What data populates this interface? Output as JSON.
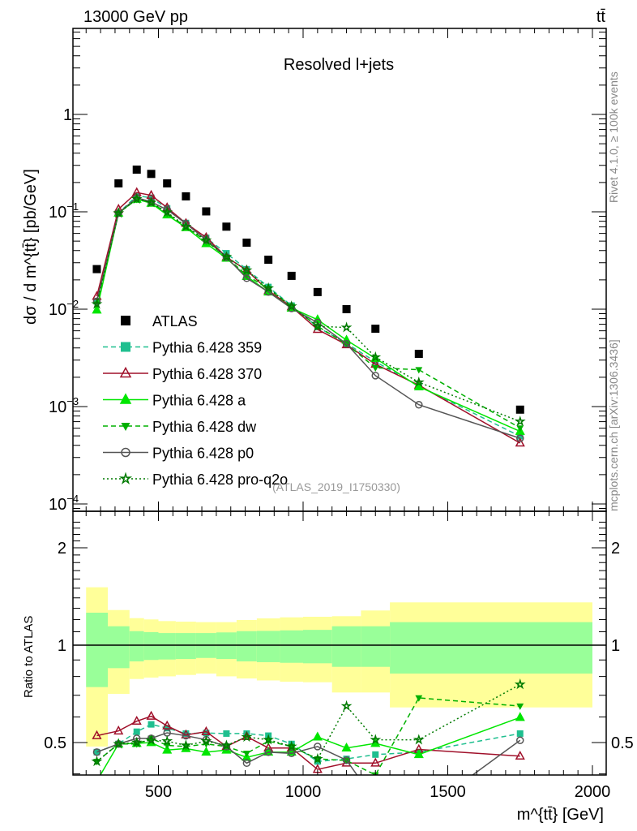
{
  "header": {
    "left": "13000 GeV pp",
    "right": "tt̄"
  },
  "side_labels": {
    "top": "Rivet 4.1.0, ≥ 100k events",
    "bottom": "mcplots.cern.ch [arXiv:1306.3436]"
  },
  "chart_data": {
    "type": "line",
    "title": "Resolved l+jets",
    "analysis": "(ATLAS_2019_I1750330)",
    "xlabel": "m^{tt̄} [GeV]",
    "ylabel": "dσ / d m^{tt̄} [pb/GeV]",
    "ratio_ylabel": "Ratio to ATLAS",
    "xlim": [
      200,
      2050
    ],
    "ylim": [
      8.35e-05,
      7.6
    ],
    "yscale": "log",
    "ratio_ylim": [
      0.397,
      2.52
    ],
    "ratio_yscale": "log",
    "x_ticks": [
      500,
      1000,
      1500,
      2000
    ],
    "x_tick_labels": [
      "500",
      "1000",
      "1500",
      "2000"
    ],
    "y_ticks": [
      1,
      0.1,
      0.01,
      0.001,
      0.0001
    ],
    "y_tick_labels": [
      [
        "1",
        ""
      ],
      [
        "10",
        "−1"
      ],
      [
        "10",
        "−2"
      ],
      [
        "10",
        "−3"
      ],
      [
        "10",
        "−4"
      ]
    ],
    "ratio_ticks": [
      0.5,
      1,
      2
    ],
    "ratio_tick_labels": [
      "0.5",
      "1",
      "2"
    ],
    "bin_edges": [
      250,
      325,
      400,
      450,
      500,
      560,
      630,
      700,
      770,
      840,
      920,
      1000,
      1100,
      1200,
      1300,
      1500,
      2000
    ],
    "x": [
      287,
      362,
      425,
      475,
      530,
      595,
      665,
      735,
      805,
      880,
      960,
      1050,
      1150,
      1250,
      1400,
      1750
    ],
    "data": {
      "name": "ATLAS",
      "color": "#000000",
      "values": [
        0.0258,
        0.196,
        0.271,
        0.245,
        0.196,
        0.144,
        0.101,
        0.0704,
        0.0482,
        0.0322,
        0.022,
        0.015,
        0.01,
        0.0063,
        0.00348,
        0.00093
      ],
      "band_total_up": [
        1.51,
        1.284,
        1.212,
        1.201,
        1.187,
        1.182,
        1.178,
        1.178,
        1.196,
        1.21,
        1.219,
        1.224,
        1.229,
        1.28,
        1.356,
        1.356
      ],
      "band_total_down": [
        0.486,
        0.707,
        0.786,
        0.794,
        0.801,
        0.809,
        0.817,
        0.801,
        0.789,
        0.778,
        0.771,
        0.768,
        0.714,
        0.714,
        0.642,
        0.642
      ],
      "band_stat_up": [
        1.26,
        1.144,
        1.105,
        1.097,
        1.09,
        1.09,
        1.09,
        1.095,
        1.105,
        1.107,
        1.111,
        1.115,
        1.144,
        1.144,
        1.178,
        1.178
      ],
      "band_stat_down": [
        0.742,
        0.849,
        0.891,
        0.9,
        0.903,
        0.906,
        0.913,
        0.906,
        0.891,
        0.886,
        0.882,
        0.879,
        0.857,
        0.857,
        0.817,
        0.817
      ]
    },
    "series": [
      {
        "name": "Pythia 6.428 359",
        "color": "#1fbf8f",
        "dash": "6,4",
        "marker": "square",
        "ratio_to_ATLAS": [
          0.467,
          0.495,
          0.54,
          0.569,
          0.554,
          0.533,
          0.535,
          0.533,
          0.533,
          0.525,
          0.495,
          0.437,
          0.445,
          0.459,
          0.467,
          0.533
        ]
      },
      {
        "name": "Pythia 6.428 370",
        "color": "#a0102a",
        "dash": "",
        "marker": "triangle-open",
        "ratio_to_ATLAS": [
          0.525,
          0.543,
          0.582,
          0.603,
          0.563,
          0.528,
          0.54,
          0.486,
          0.522,
          0.481,
          0.481,
          0.413,
          0.432,
          0.432,
          0.476,
          0.454
        ]
      },
      {
        "name": "Pythia 6.428 a",
        "color": "#00e600",
        "dash": "",
        "marker": "triangle",
        "ratio_to_ATLAS": [
          0.38,
          0.495,
          0.497,
          0.5,
          0.474,
          0.479,
          0.467,
          0.474,
          0.45,
          0.467,
          0.467,
          0.52,
          0.481,
          0.497,
          0.459,
          0.598
        ]
      },
      {
        "name": "Pythia 6.428 dw",
        "color": "#00b000",
        "dash": "6,4",
        "marker": "triangle-down",
        "ratio_to_ATLAS": [
          0.437,
          0.495,
          0.495,
          0.515,
          0.49,
          0.486,
          0.495,
          0.486,
          0.463,
          0.505,
          0.486,
          0.445,
          0.44,
          0.397,
          0.687,
          0.648
        ]
      },
      {
        "name": "Pythia 6.428 p0",
        "color": "#555555",
        "dash": "",
        "marker": "circle-open",
        "ratio_to_ATLAS": [
          0.467,
          0.495,
          0.515,
          0.515,
          0.536,
          0.525,
          0.51,
          0.486,
          0.432,
          0.467,
          0.463,
          0.486,
          0.441,
          0.33,
          0.3,
          0.508
        ]
      },
      {
        "name": "Pythia 6.428 pro-q2o",
        "color": "#007a00",
        "dash": "2,3",
        "marker": "star-open",
        "ratio_to_ATLAS": [
          0.437,
          0.495,
          0.5,
          0.508,
          0.505,
          0.49,
          0.505,
          0.49,
          0.52,
          0.51,
          0.486,
          0.445,
          0.648,
          0.51,
          0.51,
          0.756
        ]
      }
    ]
  }
}
